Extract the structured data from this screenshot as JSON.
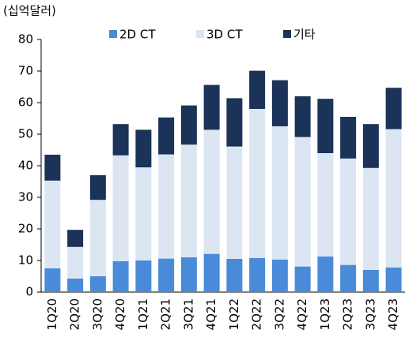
{
  "chart_data": {
    "type": "stacked_bar",
    "y_unit_label": "(십억달러)",
    "categories": [
      "1Q20",
      "2Q20",
      "3Q20",
      "4Q20",
      "1Q21",
      "2Q21",
      "3Q21",
      "4Q21",
      "1Q22",
      "2Q22",
      "3Q22",
      "4Q22",
      "1Q23",
      "2Q23",
      "3Q23",
      "4Q23"
    ],
    "series": [
      {
        "name": "2D CT",
        "color": "#4a8bd9",
        "values": [
          7.5,
          4.3,
          5,
          9.8,
          10,
          10.6,
          11,
          12.1,
          10.5,
          10.8,
          10.3,
          8.1,
          11.3,
          8.6,
          7,
          7.8
        ]
      },
      {
        "name": "3D CT",
        "color": "#dce6f2",
        "values": [
          27.8,
          10,
          24.2,
          33.5,
          29.5,
          33,
          35.7,
          39.3,
          35.6,
          47.2,
          42.2,
          41,
          32.7,
          33.7,
          32.3,
          43.8
        ]
      },
      {
        "name": "기타",
        "color": "#1b3358",
        "values": [
          8.2,
          5.4,
          7.8,
          9.9,
          11.9,
          11.7,
          12.4,
          14.2,
          15.3,
          12.1,
          14.6,
          12.9,
          17.2,
          13.2,
          13.9,
          13.1
        ]
      }
    ],
    "ylim": [
      0,
      80
    ],
    "yticks": [
      0,
      10,
      20,
      30,
      40,
      50,
      60,
      70,
      80
    ],
    "grid": false,
    "legend": "top"
  }
}
